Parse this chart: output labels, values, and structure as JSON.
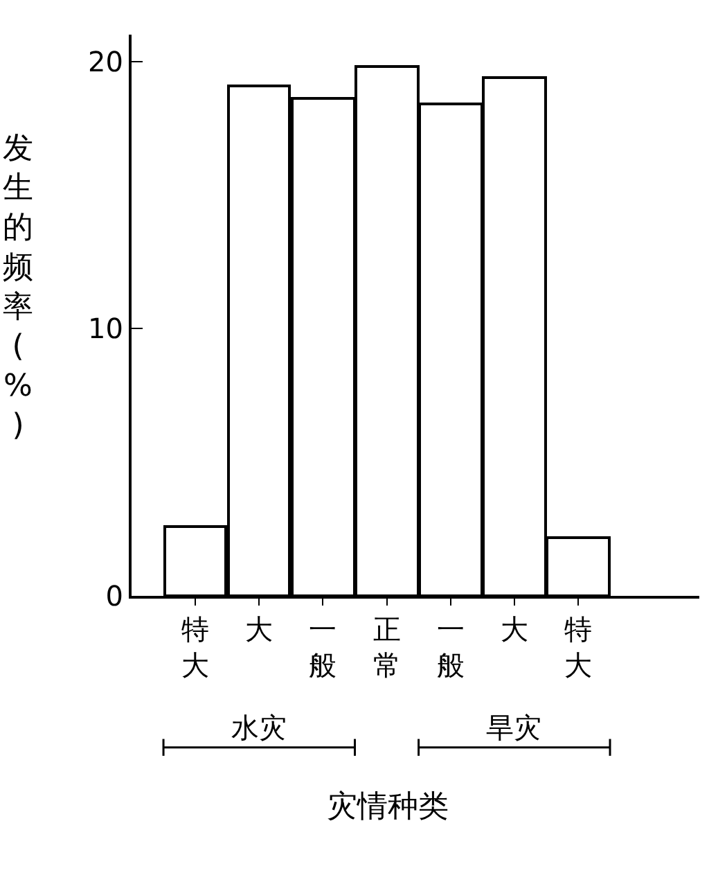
{
  "chart_data": {
    "type": "bar",
    "categories": [
      "特大",
      "大",
      "一般",
      "正常",
      "一般",
      "大",
      "特大"
    ],
    "values": [
      2.6,
      19.1,
      18.6,
      19.8,
      18.4,
      19.4,
      2.2
    ],
    "colors": [
      "#ffffff",
      "#ffffff",
      "#ffffff",
      "#ffffff",
      "#ffffff",
      "#ffffff",
      "#ffffff"
    ],
    "xlabel": "灾情种类",
    "ylabel": "发生的频率(%)",
    "annotations": [
      "水灾",
      "旱灾"
    ],
    "ylim": [
      0,
      21
    ],
    "yticks": [
      0,
      10,
      20
    ]
  }
}
